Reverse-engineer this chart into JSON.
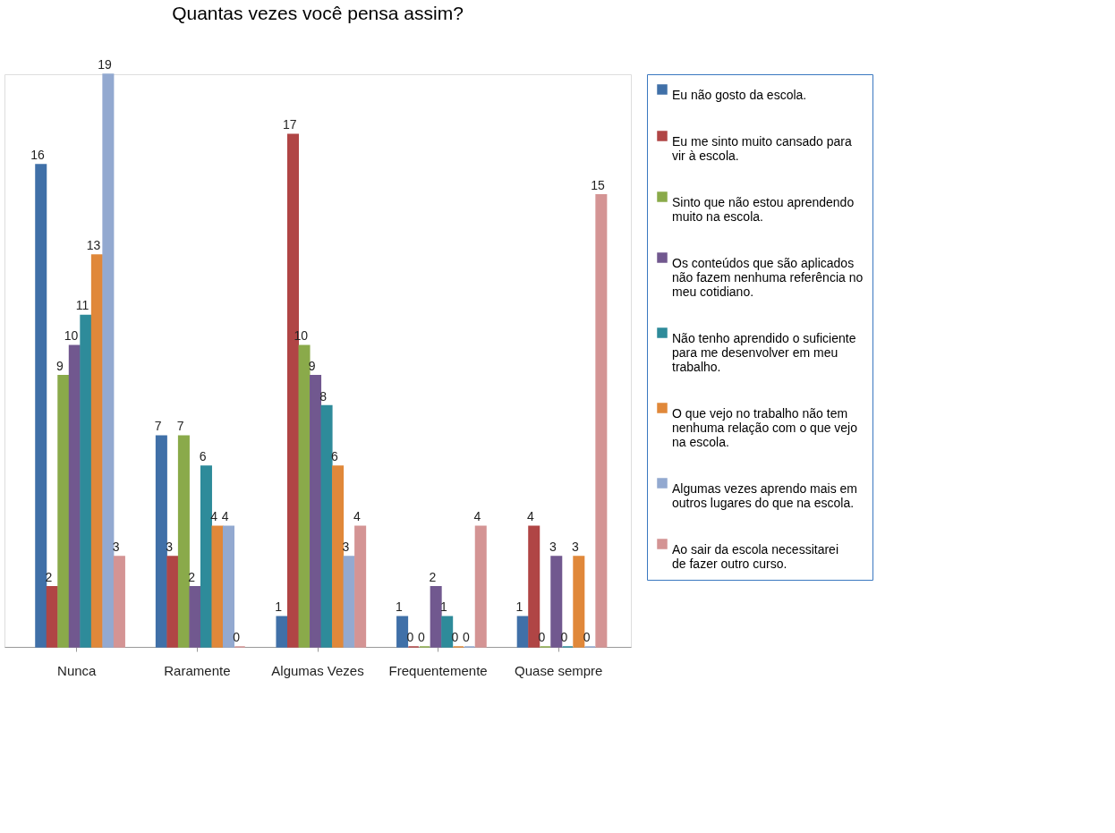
{
  "chart_data": {
    "type": "bar",
    "title": "Quantas vezes você pensa assim?",
    "categories": [
      "Nunca",
      "Raramente",
      "Algumas Vezes",
      "Frequentemente",
      "Quase sempre"
    ],
    "series": [
      {
        "name": "Eu não gosto da escola.",
        "color": "#4070a8",
        "values": [
          16,
          7,
          1,
          1,
          1
        ]
      },
      {
        "name": "Eu me sinto muito cansado para vir à escola.",
        "color": "#b04545",
        "values": [
          2,
          3,
          17,
          0,
          4
        ]
      },
      {
        "name": "Sinto que não estou aprendendo muito na escola.",
        "color": "#8aaa4a",
        "values": [
          9,
          7,
          10,
          0,
          0
        ]
      },
      {
        "name": "Os conteúdos que são aplicados não fazem nenhuma referência no meu cotidiano.",
        "color": "#71588f",
        "values": [
          10,
          2,
          9,
          2,
          3
        ]
      },
      {
        "name": "Não tenho aprendido o suficiente para me desenvolver em meu trabalho.",
        "color": "#2e8b9a",
        "values": [
          11,
          6,
          8,
          1,
          0
        ]
      },
      {
        "name": "O que vejo no trabalho não tem nenhuma relação com o que vejo na escola.",
        "color": "#e0883a",
        "values": [
          13,
          4,
          6,
          0,
          3
        ]
      },
      {
        "name": "Algumas vezes aprendo mais em outros lugares do que na escola.",
        "color": "#93a9d0",
        "values": [
          19,
          4,
          3,
          0,
          0
        ]
      },
      {
        "name": "Ao sair da escola necessitarei de fazer outro curso.",
        "color": "#d49494",
        "values": [
          3,
          0,
          4,
          4,
          15
        ]
      }
    ],
    "data_labels": true,
    "legend": "right",
    "grid": false
  }
}
